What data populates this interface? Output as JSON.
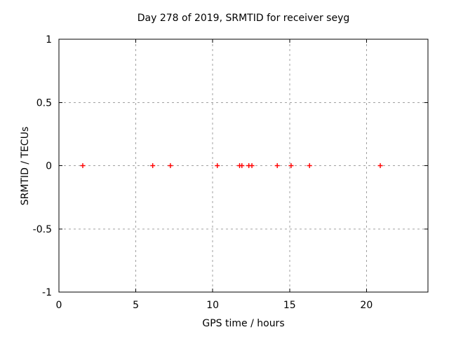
{
  "figure": {
    "title": "Day 278 of 2019, SRMTID for receiver seyg",
    "xlabel": "GPS time / hours",
    "ylabel": "SRMTID / TECUs"
  },
  "chart_data": {
    "type": "scatter",
    "title": "Day 278 of 2019, SRMTID for receiver seyg",
    "xlabel": "GPS time / hours",
    "ylabel": "SRMTID / TECUs",
    "xlim": [
      0,
      24
    ],
    "ylim": [
      -1,
      1
    ],
    "xticks": [
      0,
      5,
      10,
      15,
      20
    ],
    "xtick_labels": [
      "0",
      "5",
      "10",
      "15",
      "20"
    ],
    "yticks": [
      -1,
      -0.5,
      0,
      0.5,
      1
    ],
    "ytick_labels": [
      "-1",
      "-0.5",
      "0",
      "0.5",
      "1"
    ],
    "grid": true,
    "legend": "none",
    "marker": "plus",
    "marker_color": "#ff0000",
    "grid_color": "#a0a0a0",
    "axis_color": "#000000",
    "background_color": "#ffffff",
    "series": [
      {
        "name": "SRMTID",
        "x": [
          1.55,
          6.1,
          7.25,
          10.3,
          11.75,
          11.9,
          12.35,
          12.55,
          14.2,
          15.1,
          16.3,
          20.9
        ],
        "y": [
          0,
          0,
          0,
          0,
          0,
          0,
          0,
          0,
          0,
          0,
          0,
          0
        ]
      }
    ]
  }
}
